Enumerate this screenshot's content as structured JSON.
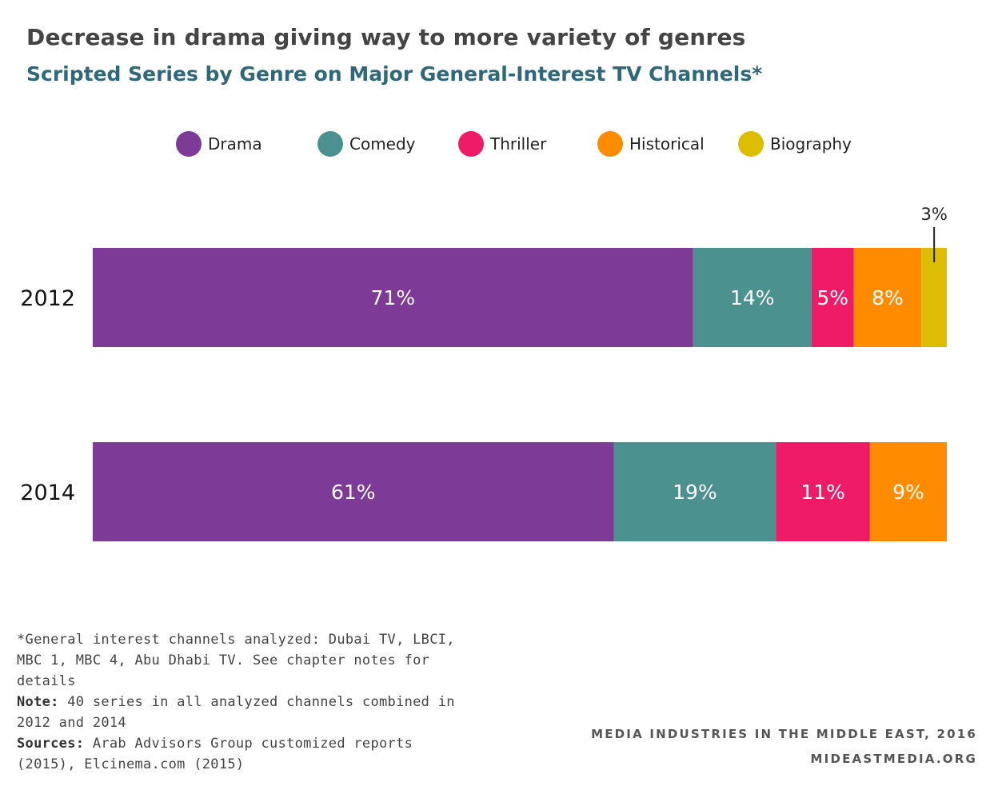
{
  "title": "Decrease in drama giving way to more variety of genres",
  "subtitle": "Scripted Series by Genre on Major General-Interest TV Channels*",
  "legend": [
    {
      "label": "Drama",
      "color": "#7d3a96"
    },
    {
      "label": "Comedy",
      "color": "#4a9190"
    },
    {
      "label": "Thriller",
      "color": "#f01b67"
    },
    {
      "label": "Historical",
      "color": "#ff8c00"
    },
    {
      "label": "Biography",
      "color": "#dcbd00"
    }
  ],
  "chart_data": {
    "type": "bar",
    "orientation": "horizontal",
    "stacked": true,
    "categories": [
      "2012",
      "2014"
    ],
    "series": [
      {
        "name": "Drama",
        "color": "#7d3a96",
        "values": [
          71,
          61
        ],
        "labels": [
          "71%",
          "61%"
        ]
      },
      {
        "name": "Comedy",
        "color": "#4a9190",
        "values": [
          14,
          19
        ],
        "labels": [
          "14%",
          "19%"
        ]
      },
      {
        "name": "Thriller",
        "color": "#f01b67",
        "values": [
          5,
          11
        ],
        "labels": [
          "5%",
          "11%"
        ]
      },
      {
        "name": "Historical",
        "color": "#ff8c00",
        "values": [
          8,
          9
        ],
        "labels": [
          "8%",
          "9%"
        ]
      },
      {
        "name": "Biography",
        "color": "#dcbd00",
        "values": [
          3,
          0
        ],
        "labels": [
          "3%",
          ""
        ]
      }
    ],
    "legend_position": "top",
    "grid": false
  },
  "notes": {
    "line1": "*General interest channels analyzed: Dubai TV, LBCI, MBC 1, MBC 4, Abu Dhabi TV. See chapter notes for details",
    "note_label": "Note:",
    "note_text": " 40 series in all analyzed channels combined in 2012 and 2014",
    "sources_label": "Sources:",
    "sources_text": " Arab Advisors Group customized reports (2015), Elcinema.com (2015)"
  },
  "credits": {
    "line1": "MEDIA INDUSTRIES IN THE MIDDLE EAST, 2016",
    "line2": "MIDEASTMEDIA.ORG"
  }
}
